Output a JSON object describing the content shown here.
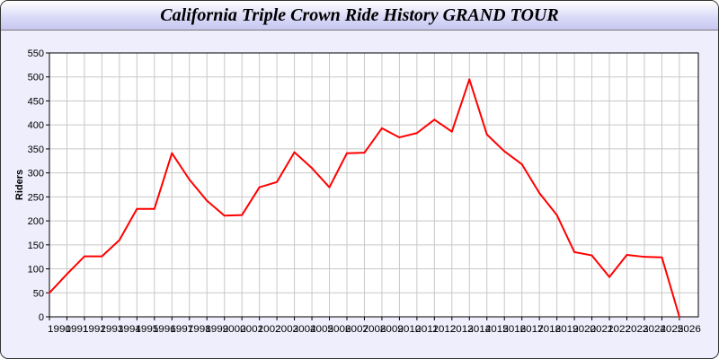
{
  "chart_data": {
    "type": "line",
    "title": "California Triple Crown Ride History GRAND TOUR",
    "xlabel": "",
    "ylabel": "Riders",
    "ylim": [
      0,
      550
    ],
    "yticks": [
      0,
      50,
      100,
      150,
      200,
      250,
      300,
      350,
      400,
      450,
      500,
      550
    ],
    "grid": true,
    "x": [
      1990,
      1991,
      1992,
      1993,
      1994,
      1995,
      1996,
      1997,
      1998,
      1999,
      2000,
      2001,
      2002,
      2003,
      2004,
      2005,
      2006,
      2007,
      2008,
      2009,
      2010,
      2011,
      2012,
      2013,
      2014,
      2015,
      2016,
      2017,
      2018,
      2019,
      2020,
      2021,
      2022,
      2023,
      2024,
      2025,
      2026
    ],
    "series": [
      {
        "color": "#ff0000",
        "values": [
          50,
          89,
          126,
          126,
          160,
          225,
          225,
          341,
          286,
          242,
          211,
          212,
          270,
          281,
          343,
          310,
          270,
          341,
          342,
          393,
          374,
          383,
          411,
          386,
          495,
          380,
          345,
          318,
          258,
          212,
          135,
          128,
          83,
          129,
          125,
          124,
          0
        ]
      }
    ]
  }
}
